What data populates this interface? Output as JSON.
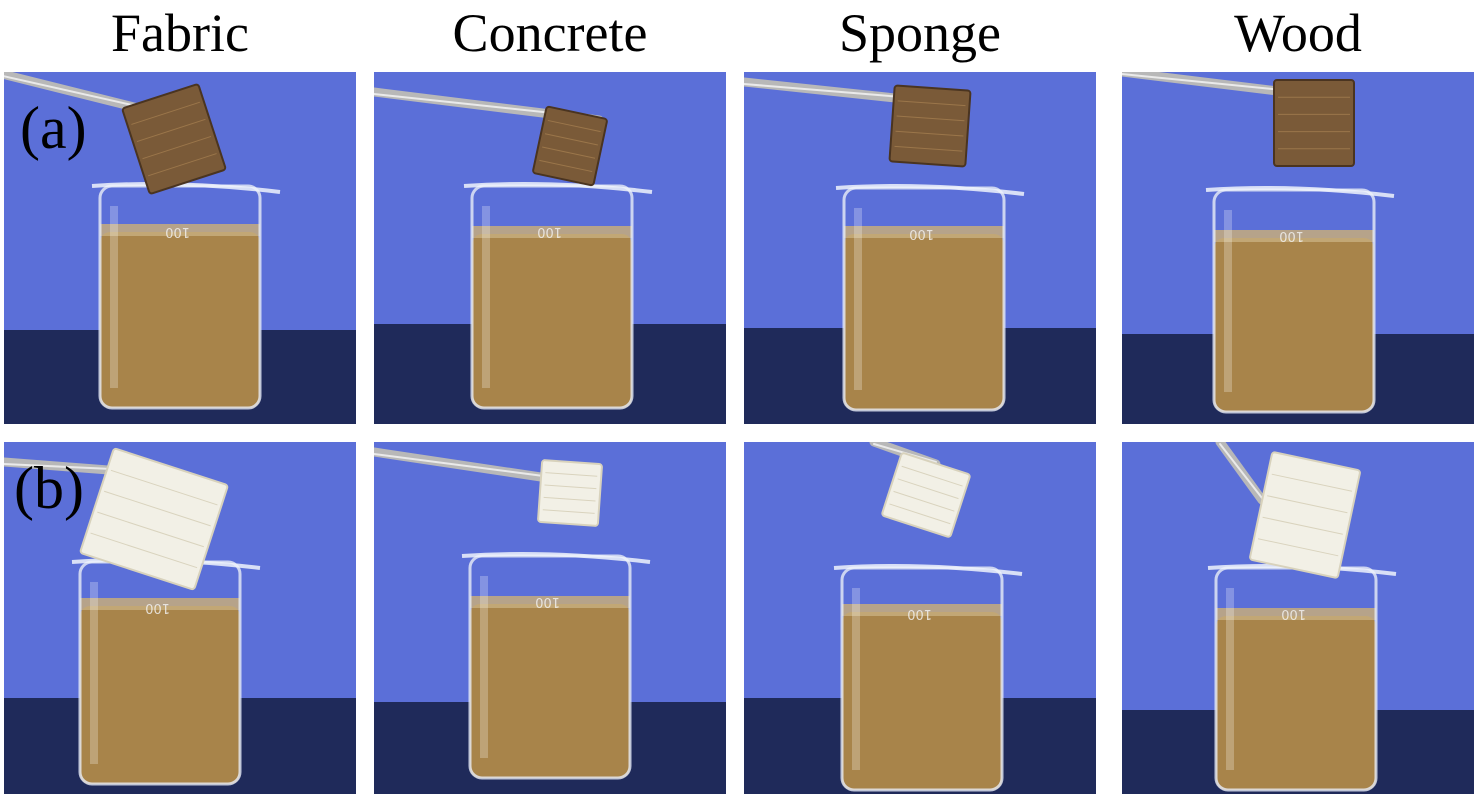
{
  "columns": [
    "Fabric",
    "Concrete",
    "Sponge",
    "Wood"
  ],
  "rows": [
    {
      "label": "(a)",
      "panels": [
        {
          "material": "Fabric",
          "sample_state": "oil-soaked",
          "beaker_mark": "100"
        },
        {
          "material": "Concrete",
          "sample_state": "oil-soaked",
          "beaker_mark": "100"
        },
        {
          "material": "Sponge",
          "sample_state": "oil-soaked",
          "beaker_mark": "100"
        },
        {
          "material": "Wood",
          "sample_state": "oil-soaked",
          "beaker_mark": "100"
        }
      ]
    },
    {
      "label": "(b)",
      "panels": [
        {
          "material": "Fabric",
          "sample_state": "clean",
          "beaker_mark": "100"
        },
        {
          "material": "Concrete",
          "sample_state": "clean",
          "beaker_mark": "100"
        },
        {
          "material": "Sponge",
          "sample_state": "clean",
          "beaker_mark": "100"
        },
        {
          "material": "Wood",
          "sample_state": "clean",
          "beaker_mark": "100"
        }
      ]
    }
  ],
  "colors": {
    "backdrop": "#5b6fd8",
    "table": "#1f2a5a",
    "liquid": "#a8844a",
    "dirty_sample": "#7a5a38",
    "clean_sample": "#f2f0e6"
  }
}
